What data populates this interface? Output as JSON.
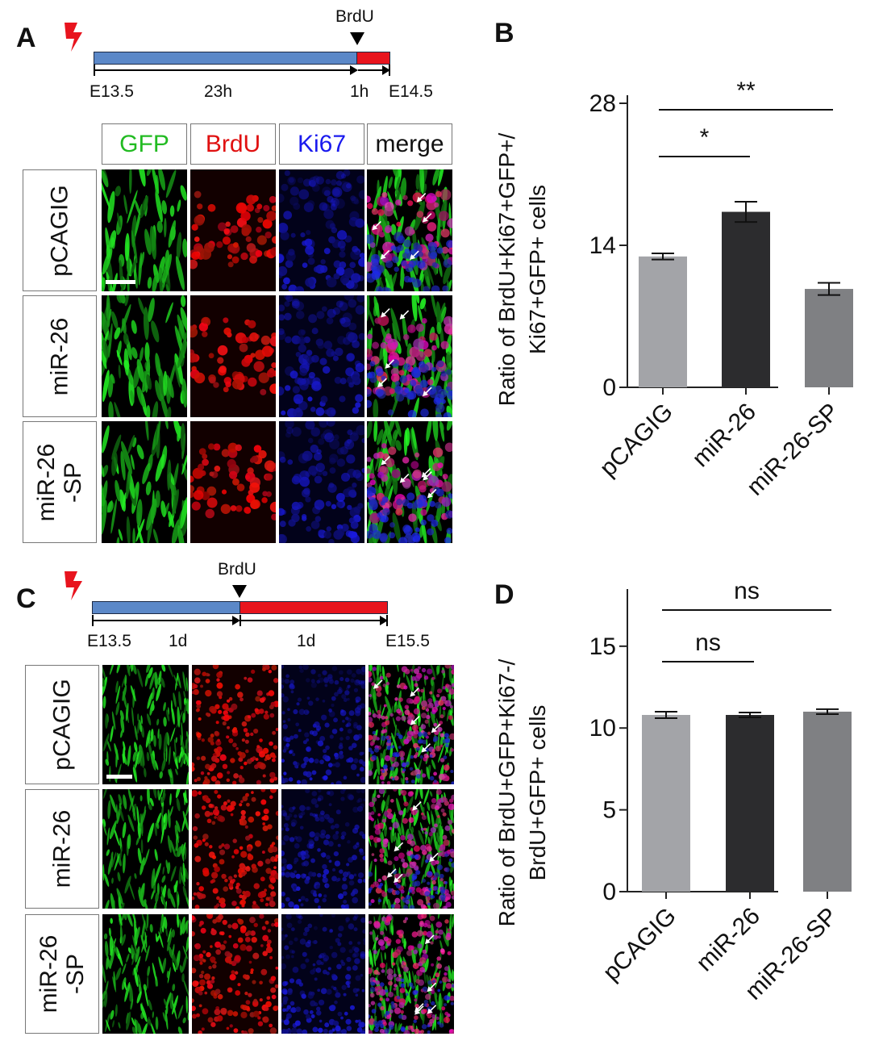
{
  "panels": {
    "A": {
      "letter": "A",
      "pulse_label": "BrdU",
      "timeline_labels": [
        "E13.5",
        "23h",
        "1h",
        "E14.5"
      ],
      "columns": [
        "GFP",
        "BrdU",
        "Ki67",
        "merge"
      ],
      "column_colors": [
        "#22bb22",
        "#e01010",
        "#1a1aee",
        "#111111"
      ],
      "rows": [
        "pCAGIG",
        "miR-26",
        "miR-26\n-SP"
      ]
    },
    "C": {
      "letter": "C",
      "pulse_label": "BrdU",
      "timeline_labels": [
        "E13.5",
        "1d",
        "1d",
        "E15.5"
      ],
      "rows": [
        "pCAGIG",
        "miR-26",
        "miR-26\n-SP"
      ]
    },
    "B": {
      "letter": "B"
    },
    "D": {
      "letter": "D"
    }
  },
  "colors": {
    "timeline_blue": "#5b88c8",
    "timeline_red": "#e8141e",
    "bar_pcagig": "#a3a4a8",
    "bar_mir26": "#2c2c2e",
    "bar_mir26sp": "#7f8083"
  },
  "chart_data": [
    {
      "panel": "B",
      "type": "bar",
      "categories": [
        "pCAGIG",
        "miR-26",
        "miR-26-SP"
      ],
      "values": [
        12.9,
        17.3,
        9.7
      ],
      "errors": [
        0.3,
        1.0,
        0.6
      ],
      "ylabel": [
        "Ratio of BrdU+Ki67+GFP+/",
        "Ki67+GFP+ cells"
      ],
      "ylim": [
        0,
        28
      ],
      "yticks": [
        0,
        14,
        28
      ],
      "significance": [
        {
          "label": "*",
          "from": 0,
          "to": 1
        },
        {
          "label": "**",
          "from": 0,
          "to": 2
        }
      ],
      "grid": false
    },
    {
      "panel": "D",
      "type": "bar",
      "categories": [
        "pCAGIG",
        "miR-26",
        "miR-26-SP"
      ],
      "values": [
        10.8,
        10.8,
        11.0
      ],
      "errors": [
        0.2,
        0.15,
        0.15
      ],
      "ylabel": [
        "Ratio of BrdU+GFP+Ki67-/",
        "BrdU+GFP+ cells"
      ],
      "ylim": [
        0,
        18
      ],
      "yticks": [
        0,
        5,
        10,
        15
      ],
      "significance": [
        {
          "label": "ns",
          "from": 0,
          "to": 1
        },
        {
          "label": "ns",
          "from": 0,
          "to": 2
        }
      ],
      "grid": false
    }
  ]
}
